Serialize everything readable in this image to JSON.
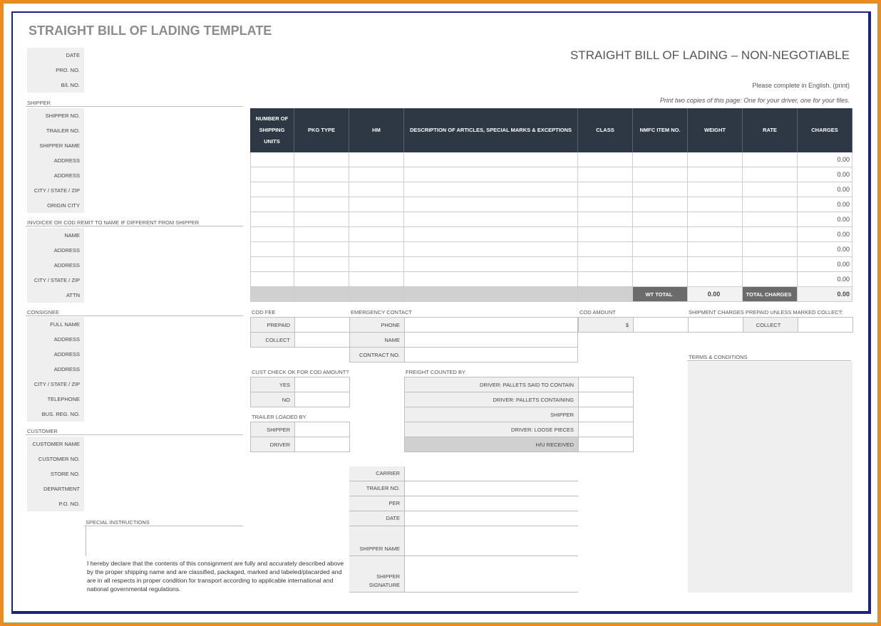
{
  "title": "STRAIGHT BILL OF LADING TEMPLATE",
  "subtitle": "STRAIGHT BILL OF LADING – NON-NEGOTIABLE",
  "note_english": "Please complete in English. (print)",
  "note_copies": "Print two copies of this page: One for your driver, one for your files.",
  "colors": {
    "header_bg": "#2e3744",
    "label_bg": "#efefef",
    "frame_outer": "#f08a1c",
    "frame_inner": "#1a237e"
  },
  "top_fields": [
    "DATE",
    "PRO. NO.",
    "B/L NO."
  ],
  "shipper": {
    "heading": "SHIPPER",
    "fields": [
      "SHIPPER NO.",
      "TRAILER  NO.",
      "SHIPPER NAME",
      "ADDRESS",
      "ADDRESS",
      "CITY / STATE / ZIP",
      "ORIGIN CITY"
    ]
  },
  "invoicee": {
    "heading": "INVOICEE OR COD REMIT TO NAME If different from shipper",
    "fields": [
      "NAME",
      "ADDRESS",
      "ADDRESS",
      "CITY / STATE / ZIP",
      "ATTN"
    ]
  },
  "consignee": {
    "heading": "CONSIGNEE",
    "fields": [
      "FULL NAME",
      "ADDRESS",
      "ADDRESS",
      "ADDRESS",
      "CITY / STATE / ZIP",
      "TELEPHONE",
      "BUS. REG. NO."
    ]
  },
  "customer": {
    "heading": "CUSTOMER",
    "fields": [
      "CUSTOMER NAME",
      "CUSTOMER NO.",
      "STORE NO.",
      "DEPARTMENT",
      "P.O. NO."
    ]
  },
  "special_instructions": "SPECIAL INSTRUCTIONS",
  "declaration": "I hereby declare that the contents of this consignment are fully and accurately described above by the proper shipping name and are classified, packaged, marked and labeled/placarded and are in all respects in proper condition for transport according to applicable international and national governmental regulations.",
  "table": {
    "headers": [
      "NUMBER OF SHIPPING UNITS",
      "PKG TYPE",
      "HM",
      "DESCRIPTION OF ARTICLES, SPECIAL MARKS & EXCEPTIONS",
      "CLASS",
      "NMFC ITEM NO.",
      "WEIGHT",
      "RATE",
      "CHARGES"
    ],
    "charges": [
      "0.00",
      "0.00",
      "0.00",
      "0.00",
      "0.00",
      "0.00",
      "0.00",
      "0.00",
      "0.00"
    ],
    "wt_total_label": "WT TOTAL",
    "wt_total": "0.00",
    "total_charges_label": "TOTAL CHARGES",
    "total_charges": "0.00"
  },
  "cod_fee": {
    "heading": "COD FEE",
    "fields": [
      "PREPAID",
      "COLLECT"
    ]
  },
  "emergency": {
    "heading": "EMERGENCY CONTACT",
    "fields": [
      "PHONE",
      "NAME",
      "CONTRACT NO."
    ]
  },
  "cod_amount": {
    "heading": "COD AMOUNT",
    "currency": "$"
  },
  "shipment_charges": {
    "heading": "SHIPMENT CHARGES PREPAID UNLESS MARKED COLLECT:",
    "collect": "COLLECT"
  },
  "cust_check": {
    "heading": "CUST CHECK OK FOR COD AMOUNT?",
    "fields": [
      "YES",
      "NO"
    ]
  },
  "trailer_loaded": {
    "heading": "TRAILER LOADED BY",
    "fields": [
      "SHIPPER",
      "DRIVER"
    ]
  },
  "freight_counted": {
    "heading": "FREIGHT COUNTED BY",
    "fields": [
      "DRIVER: PALLETS SAID TO CONTAIN",
      "DRIVER: PALLETS CONTAINING",
      "SHIPPER",
      "DRIVER: LOOSE PIECES",
      "H/U RECEIVED"
    ]
  },
  "carrier": {
    "fields": [
      "CARRIER",
      "TRAILER NO.",
      "PER",
      "DATE",
      "SHIPPER NAME",
      "SHIPPER SIGNATURE"
    ]
  },
  "terms": "TERMS & CONDITIONS"
}
